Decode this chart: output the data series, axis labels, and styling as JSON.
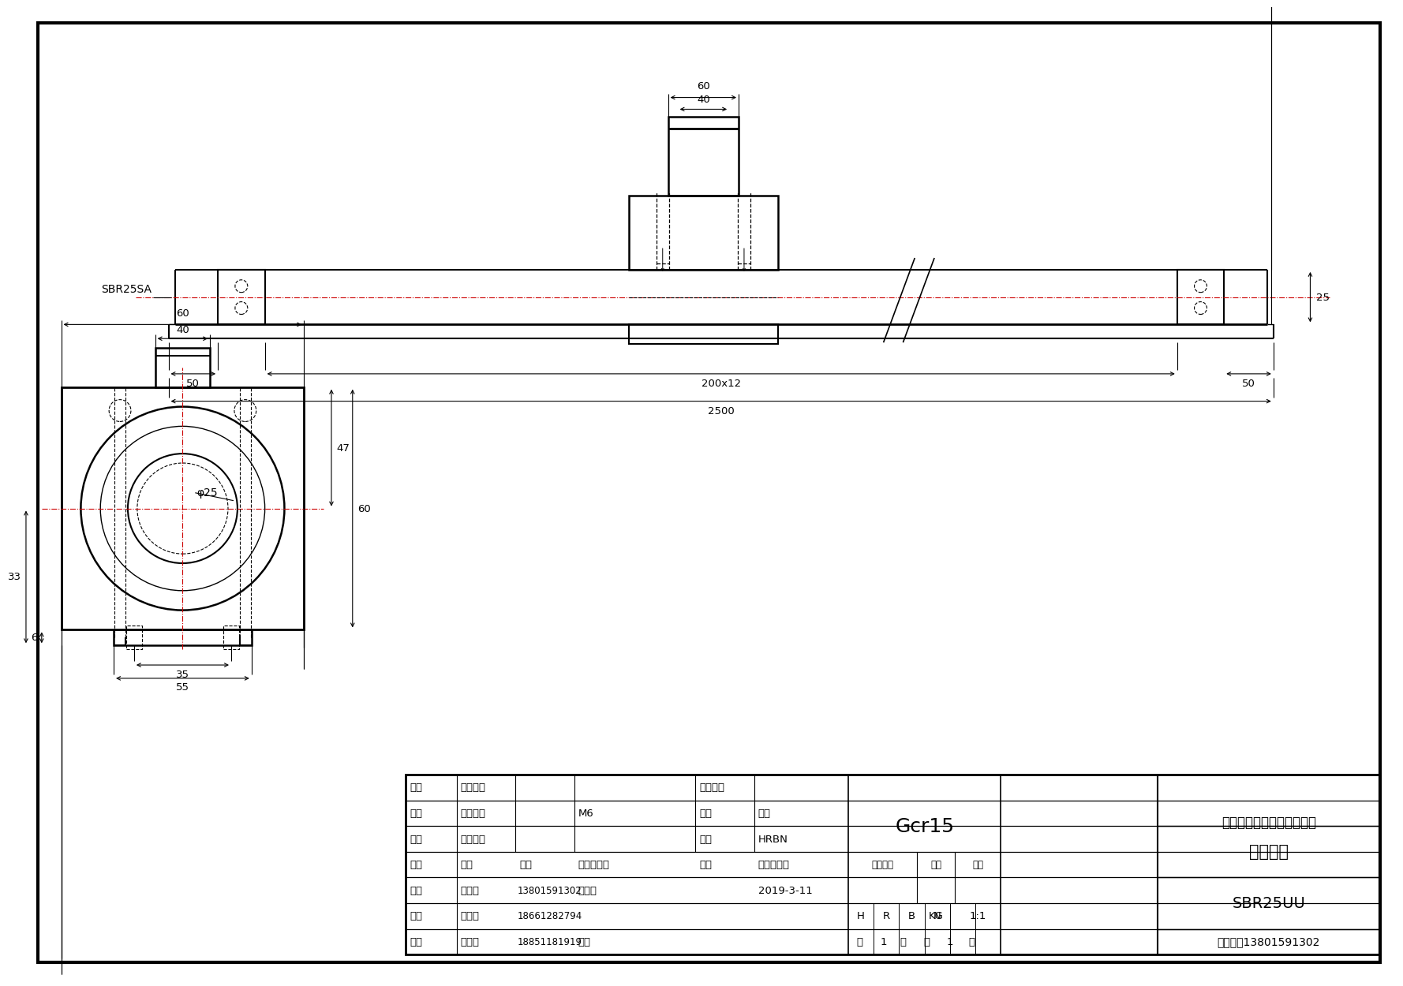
{
  "bg_color": "#ffffff",
  "line_color": "#000000",
  "company": "南京哈宁轴承制造有限公司",
  "product_name": "直线导轨",
  "product_code": "SBR25UU",
  "material": "Gcr15",
  "row1": [
    "直径",
    "钉球直径",
    "褴母编号"
  ],
  "row2": [
    "导程",
    "油嘴尺寸",
    "M6",
    "产地",
    "南京"
  ],
  "row3": [
    "圈数",
    "褴母重量",
    "品牌",
    "HRBN"
  ],
  "row4": [
    "标记",
    "处数",
    "分区",
    "更改文件号",
    "签名",
    "年、月、日"
  ],
  "row5": [
    "设计",
    "刘长岭",
    "13801591302",
    "标准化",
    "2019-3-11"
  ],
  "row6_label": "阶段标记",
  "row6_weight": "重量",
  "row6_scale": "比例",
  "row7": [
    "H",
    "R",
    "B",
    "N",
    "KG",
    "1:1"
  ],
  "row8": [
    "审核",
    "刘献宁",
    "18661282794"
  ],
  "row9": [
    "共",
    "1",
    "张",
    "第",
    "1",
    "张"
  ],
  "row10": [
    "工艺",
    "田海飞",
    "18851181919",
    "批准"
  ],
  "order_info": "订货电话13801591302",
  "dim_60_top": "60",
  "dim_40_top": "40",
  "dim_25_right": "25",
  "dim_50_left": "50",
  "dim_200x12": "200x12",
  "dim_50_right": "50",
  "dim_2500": "2500",
  "label_sbr25sa": "SBR25SA",
  "lv_60_top": "60",
  "lv_40": "40",
  "lv_47": "47",
  "lv_60_side": "60",
  "lv_33": "33",
  "lv_6": "6",
  "lv_35": "35",
  "lv_55": "55",
  "lv_dia25": "φ25"
}
